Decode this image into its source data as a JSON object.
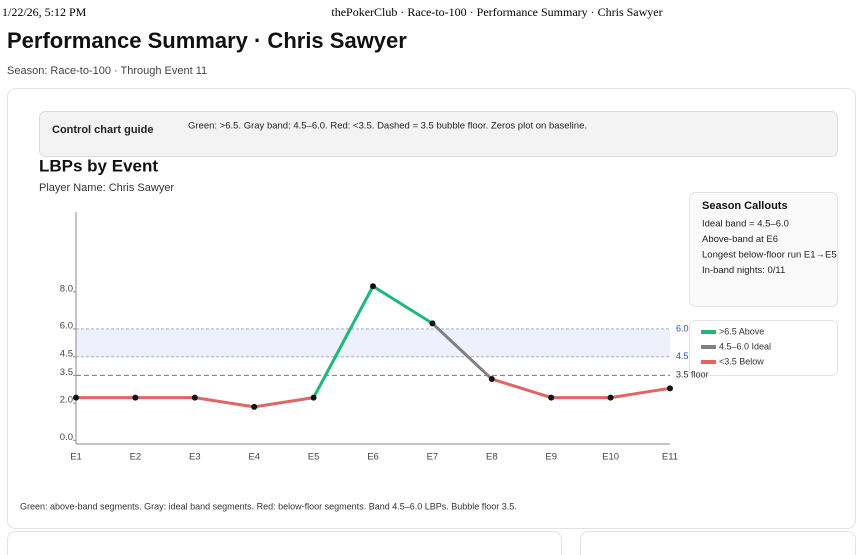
{
  "header": {
    "timestamp": "1/22/26, 5:12 PM",
    "page_title": "thePokerClub · Race-to-100 · Performance Summary · Chris Sawyer"
  },
  "title": "Performance Summary · Chris Sawyer",
  "subtitle": "Season: Race-to-100 · Through Event 11",
  "guide": {
    "label": "Control chart guide",
    "text": "Green: >6.5. Gray band: 4.5–6.0. Red: <3.5. Dashed = 3.5 bubble floor. Zeros plot on baseline."
  },
  "chart_data": {
    "type": "line",
    "title": "LBPs by Event",
    "subtitle": "Player Name: Chris Sawyer",
    "categories": [
      "E1",
      "E2",
      "E3",
      "E4",
      "E5",
      "E6",
      "E7",
      "E8",
      "E9",
      "E10",
      "E11"
    ],
    "values": [
      2.3,
      2.3,
      2.3,
      1.8,
      2.3,
      8.3,
      6.3,
      3.3,
      2.3,
      2.3,
      2.8
    ],
    "segment_colors": [
      "#e06666",
      "#e06666",
      "#e06666",
      "#e06666",
      "#1db87a",
      "#1db87a",
      "#808080",
      "#e06666",
      "#e06666",
      "#e06666"
    ],
    "point_color": "#111111",
    "ylim": [
      -0.2,
      12.3
    ],
    "yticks": [
      {
        "value": 0,
        "label": "0.0"
      },
      {
        "value": 2,
        "label": "2.0"
      },
      3.5,
      4.5,
      {
        "value": 6,
        "label": "6.0"
      },
      {
        "value": 8,
        "label": "8.0"
      }
    ],
    "band": [
      4.5,
      {
        "value": 6,
        "label": "6.0"
      }
    ],
    "band_color": "#eef0fb",
    "floor": {
      "value": 3.5,
      "label": "3.5 floor"
    },
    "legend": [
      {
        "name": ">6.5 Above",
        "color": "#1db87a"
      },
      {
        "name": "4.5–6.0 Ideal",
        "color": "#808080"
      },
      {
        "name": "<3.5 Below",
        "color": "#e06666"
      }
    ]
  },
  "callouts": {
    "title": "Season Callouts",
    "items": [
      "Ideal band = 4.5–6.0",
      "Above-band at E6",
      "Longest below-floor run E1→E5",
      "In-band nights: 0/11"
    ]
  },
  "footnote": "Green: above-band segments. Gray: ideal band segments. Red: below-floor segments. Band 4.5–6.0 LBPs. Bubble floor 3.5."
}
